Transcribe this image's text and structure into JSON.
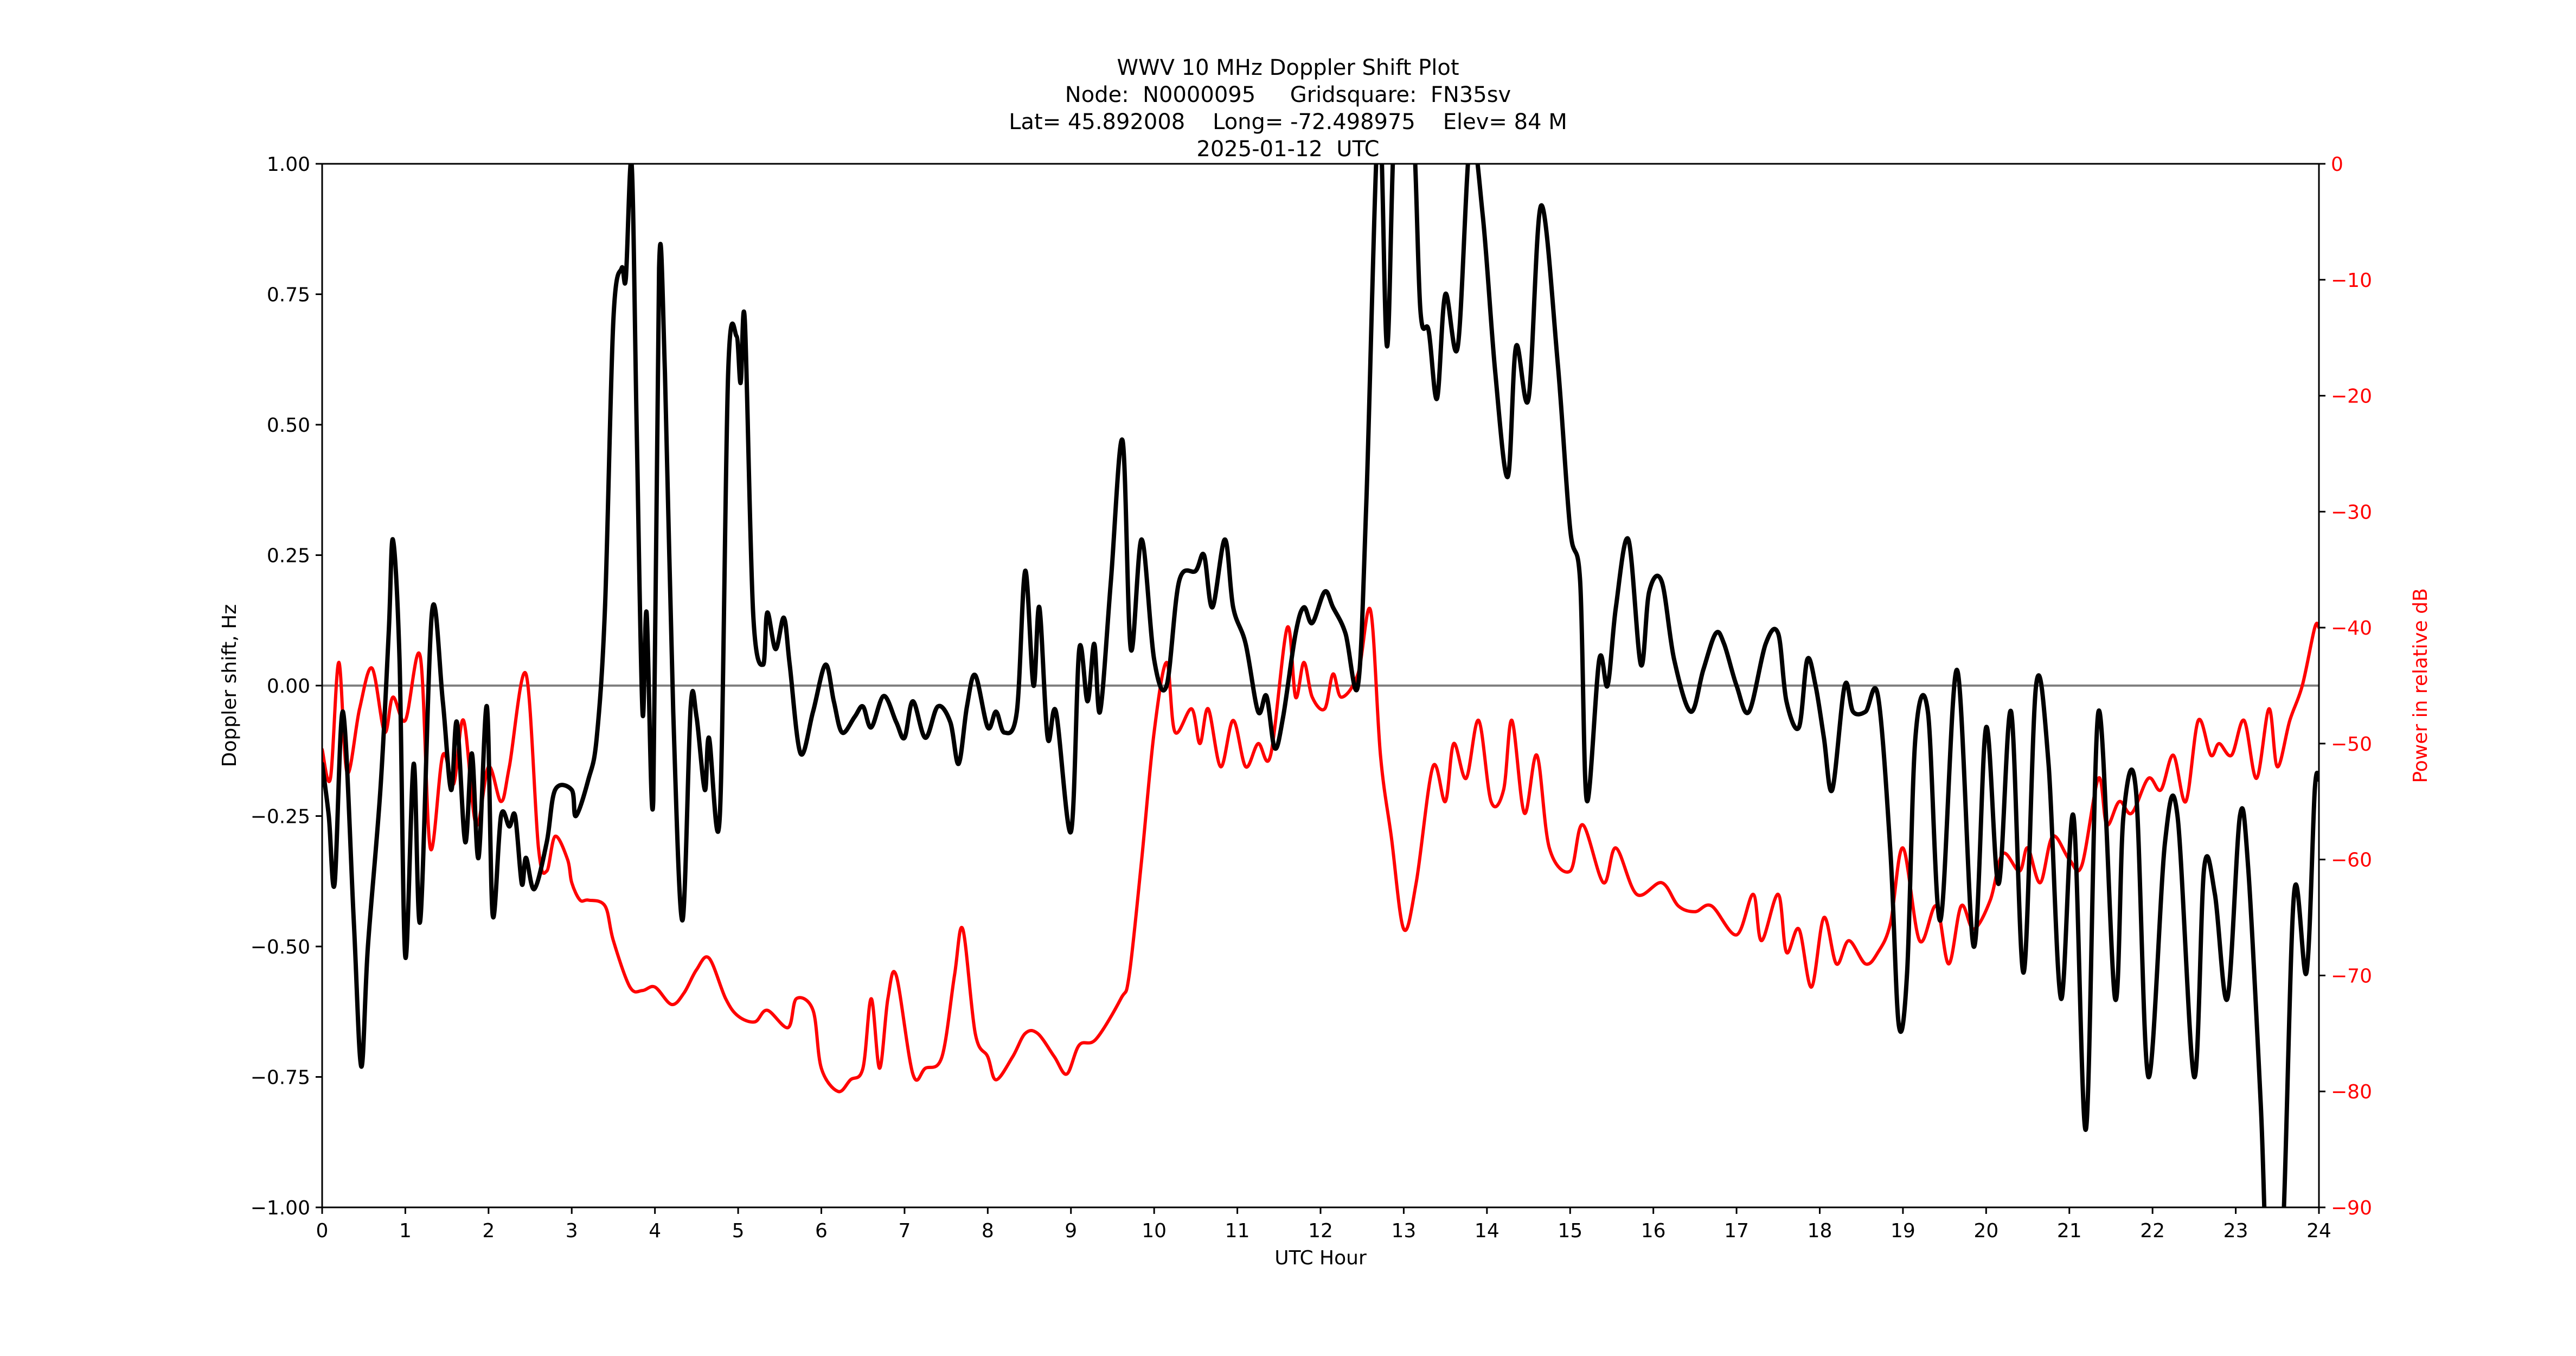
{
  "title": {
    "line1": "WWV 10 MHz Doppler Shift Plot",
    "line2": "Node:  N0000095     Gridsquare:  FN35sv",
    "line3": "Lat= 45.892008    Long= -72.498975    Elev= 84 M",
    "line4": "2025-01-12  UTC"
  },
  "colors": {
    "doppler": "#000000",
    "power": "#ff0000",
    "zero_line": "#808080",
    "axis": "#000000"
  },
  "chart_data": {
    "type": "line",
    "title": "WWV 10 MHz Doppler Shift Plot",
    "subtitle": "Node: N0000095  Gridsquare: FN35sv  Lat= 45.892008  Long= -72.498975  Elev= 84 M  2025-01-12 UTC",
    "xlabel": "UTC Hour",
    "ylabel": "Doppler shift, Hz",
    "y2label": "Power in relative dB",
    "xlim": [
      0,
      24
    ],
    "ylim": [
      -1.0,
      1.0
    ],
    "y2lim": [
      -90,
      0
    ],
    "grid": false,
    "legend": null,
    "x_ticks": [
      "0",
      "1",
      "2",
      "3",
      "4",
      "5",
      "6",
      "7",
      "8",
      "9",
      "10",
      "11",
      "12",
      "13",
      "14",
      "15",
      "16",
      "17",
      "18",
      "19",
      "20",
      "21",
      "22",
      "23",
      "24"
    ],
    "y_ticks": [
      "1.00",
      "0.75",
      "0.50",
      "0.25",
      "0.00",
      "−0.25",
      "−0.50",
      "−0.75",
      "−1.00"
    ],
    "y2_ticks": [
      "0",
      "−10",
      "−20",
      "−30",
      "−40",
      "−50",
      "−60",
      "−70",
      "−80",
      "−90"
    ],
    "series": [
      {
        "name": "Doppler shift, Hz",
        "axis": "left",
        "color": "#000000",
        "x": [
          0.0,
          0.08,
          0.15,
          0.25,
          0.38,
          0.47,
          0.55,
          0.7,
          0.8,
          0.85,
          0.93,
          1.0,
          1.1,
          1.18,
          1.32,
          1.45,
          1.55,
          1.62,
          1.72,
          1.8,
          1.88,
          1.98,
          2.05,
          2.15,
          2.25,
          2.32,
          2.4,
          2.45,
          2.55,
          2.7,
          2.8,
          3.0,
          3.05,
          3.2,
          3.3,
          3.4,
          3.5,
          3.6,
          3.65,
          3.72,
          3.78,
          3.85,
          3.9,
          3.98,
          4.05,
          4.12,
          4.22,
          4.33,
          4.43,
          4.5,
          4.6,
          4.65,
          4.78,
          4.88,
          4.98,
          5.03,
          5.08,
          5.18,
          5.3,
          5.35,
          5.45,
          5.55,
          5.62,
          5.75,
          5.9,
          6.05,
          6.15,
          6.25,
          6.4,
          6.5,
          6.6,
          6.75,
          6.9,
          7.0,
          7.1,
          7.25,
          7.4,
          7.55,
          7.65,
          7.75,
          7.85,
          8.0,
          8.1,
          8.2,
          8.35,
          8.45,
          8.55,
          8.62,
          8.72,
          8.82,
          9.0,
          9.1,
          9.2,
          9.28,
          9.35,
          9.48,
          9.62,
          9.72,
          9.85,
          10.0,
          10.15,
          10.3,
          10.5,
          10.6,
          10.7,
          10.85,
          10.95,
          11.1,
          11.25,
          11.35,
          11.45,
          11.55,
          11.7,
          11.8,
          11.9,
          12.05,
          12.15,
          12.3,
          12.45,
          12.55,
          12.7,
          12.8,
          12.9,
          13.1,
          13.2,
          13.3,
          13.4,
          13.5,
          13.65,
          13.8,
          13.95,
          14.1,
          14.25,
          14.35,
          14.5,
          14.65,
          14.85,
          15.0,
          15.12,
          15.2,
          15.35,
          15.45,
          15.55,
          15.7,
          15.85,
          15.95,
          16.1,
          16.25,
          16.45,
          16.6,
          16.75,
          16.85,
          17.0,
          17.15,
          17.35,
          17.5,
          17.6,
          17.75,
          17.85,
          17.95,
          18.05,
          18.15,
          18.3,
          18.4,
          18.55,
          18.7,
          18.85,
          18.95,
          19.05,
          19.15,
          19.3,
          19.45,
          19.65,
          19.85,
          20.0,
          20.15,
          20.3,
          20.45,
          20.6,
          20.75,
          20.9,
          21.05,
          21.2,
          21.35,
          21.55,
          21.65,
          21.8,
          21.95,
          22.15,
          22.3,
          22.5,
          22.62,
          22.75,
          22.9,
          23.05,
          23.15,
          23.3,
          23.38,
          23.55,
          23.7,
          23.85,
          23.95,
          24.0
        ],
        "values": [
          -0.15,
          -0.25,
          -0.38,
          -0.05,
          -0.45,
          -0.73,
          -0.5,
          -0.2,
          0.1,
          0.28,
          0.05,
          -0.52,
          -0.15,
          -0.45,
          0.14,
          -0.03,
          -0.2,
          -0.07,
          -0.3,
          -0.13,
          -0.33,
          -0.04,
          -0.44,
          -0.25,
          -0.27,
          -0.25,
          -0.38,
          -0.33,
          -0.39,
          -0.3,
          -0.2,
          -0.2,
          -0.25,
          -0.18,
          -0.1,
          0.15,
          0.7,
          0.8,
          0.78,
          1.0,
          0.5,
          -0.05,
          0.14,
          -0.22,
          0.8,
          0.6,
          -0.05,
          -0.45,
          -0.04,
          -0.06,
          -0.2,
          -0.1,
          -0.25,
          0.6,
          0.67,
          0.58,
          0.7,
          0.14,
          0.04,
          0.14,
          0.07,
          0.13,
          0.04,
          -0.13,
          -0.05,
          0.04,
          -0.03,
          -0.09,
          -0.06,
          -0.04,
          -0.08,
          -0.02,
          -0.07,
          -0.1,
          -0.03,
          -0.1,
          -0.04,
          -0.07,
          -0.15,
          -0.04,
          0.02,
          -0.08,
          -0.05,
          -0.09,
          -0.05,
          0.22,
          0.0,
          0.15,
          -0.1,
          -0.05,
          -0.28,
          0.07,
          -0.03,
          0.08,
          -0.05,
          0.2,
          0.47,
          0.07,
          0.28,
          0.05,
          0.0,
          0.2,
          0.22,
          0.25,
          0.15,
          0.28,
          0.15,
          0.08,
          -0.05,
          -0.02,
          -0.12,
          -0.06,
          0.1,
          0.15,
          0.12,
          0.18,
          0.15,
          0.1,
          0.0,
          0.35,
          1.1,
          0.65,
          1.1,
          1.1,
          0.72,
          0.68,
          0.55,
          0.75,
          0.65,
          1.05,
          0.9,
          0.6,
          0.4,
          0.65,
          0.55,
          0.92,
          0.62,
          0.3,
          0.2,
          -0.22,
          0.05,
          0.0,
          0.15,
          0.28,
          0.04,
          0.18,
          0.2,
          0.05,
          -0.05,
          0.03,
          0.1,
          0.08,
          0.0,
          -0.05,
          0.08,
          0.1,
          -0.03,
          -0.08,
          0.05,
          0.0,
          -0.1,
          -0.2,
          0.0,
          -0.05,
          -0.05,
          -0.02,
          -0.32,
          -0.65,
          -0.55,
          -0.1,
          -0.05,
          -0.45,
          0.03,
          -0.5,
          -0.08,
          -0.38,
          -0.05,
          -0.55,
          0.0,
          -0.15,
          -0.6,
          -0.25,
          -0.85,
          -0.05,
          -0.6,
          -0.25,
          -0.2,
          -0.75,
          -0.3,
          -0.25,
          -0.75,
          -0.35,
          -0.4,
          -0.6,
          -0.25,
          -0.35,
          -0.8,
          -1.1,
          -1.1,
          -0.4,
          -0.55,
          -0.2,
          -0.18
        ]
      },
      {
        "name": "Power in relative dB",
        "axis": "right",
        "color": "#ff0000",
        "x": [
          0.0,
          0.1,
          0.2,
          0.3,
          0.45,
          0.6,
          0.75,
          0.85,
          1.0,
          1.18,
          1.3,
          1.45,
          1.58,
          1.7,
          1.85,
          2.0,
          2.15,
          2.25,
          2.45,
          2.6,
          2.7,
          2.8,
          2.95,
          3.0,
          3.1,
          3.2,
          3.4,
          3.5,
          3.7,
          3.85,
          4.0,
          4.2,
          4.35,
          4.5,
          4.65,
          4.85,
          5.0,
          5.2,
          5.35,
          5.6,
          5.7,
          5.9,
          6.0,
          6.2,
          6.35,
          6.5,
          6.6,
          6.7,
          6.8,
          6.9,
          7.1,
          7.25,
          7.45,
          7.6,
          7.7,
          7.85,
          8.0,
          8.1,
          8.3,
          8.45,
          8.6,
          8.8,
          8.95,
          9.1,
          9.3,
          9.6,
          9.7,
          9.85,
          10.0,
          10.15,
          10.25,
          10.45,
          10.55,
          10.65,
          10.8,
          10.95,
          11.1,
          11.25,
          11.4,
          11.6,
          11.7,
          11.8,
          11.9,
          12.05,
          12.15,
          12.25,
          12.45,
          12.6,
          12.72,
          12.85,
          13.0,
          13.15,
          13.35,
          13.5,
          13.6,
          13.75,
          13.9,
          14.05,
          14.2,
          14.3,
          14.45,
          14.6,
          14.75,
          15.0,
          15.15,
          15.4,
          15.55,
          15.8,
          16.1,
          16.3,
          16.5,
          16.7,
          17.0,
          17.2,
          17.3,
          17.5,
          17.6,
          17.75,
          17.9,
          18.05,
          18.2,
          18.35,
          18.55,
          18.7,
          18.85,
          19.0,
          19.2,
          19.4,
          19.55,
          19.7,
          19.85,
          20.05,
          20.2,
          20.4,
          20.5,
          20.65,
          20.8,
          21.0,
          21.15,
          21.35,
          21.45,
          21.6,
          21.75,
          21.95,
          22.1,
          22.25,
          22.4,
          22.55,
          22.7,
          22.8,
          22.95,
          23.1,
          23.25,
          23.4,
          23.5,
          23.65,
          23.8,
          23.95,
          24.0
        ],
        "values": [
          -50.5,
          -53,
          -43,
          -52.5,
          -47,
          -43.5,
          -49,
          -46,
          -48,
          -42.5,
          -59,
          -51,
          -53.5,
          -48,
          -57,
          -52,
          -55,
          -52,
          -44,
          -59,
          -61,
          -58,
          -60,
          -62,
          -63.5,
          -63.5,
          -64,
          -67,
          -71,
          -71.3,
          -71,
          -72.5,
          -71.5,
          -69.5,
          -68.5,
          -72,
          -73.5,
          -74,
          -73,
          -74.5,
          -72,
          -73,
          -78,
          -80,
          -79,
          -78,
          -72,
          -78,
          -72,
          -70,
          -78.5,
          -78,
          -77,
          -70,
          -66,
          -75,
          -77,
          -79,
          -77,
          -75,
          -75,
          -77,
          -78.5,
          -76,
          -75.5,
          -72,
          -70,
          -60,
          -49,
          -43,
          -49,
          -47,
          -50,
          -47,
          -52,
          -48,
          -52,
          -50,
          -51,
          -40,
          -46,
          -43,
          -46,
          -47,
          -44,
          -46,
          -44,
          -38.5,
          -51,
          -58,
          -66,
          -62,
          -52,
          -55,
          -50,
          -53,
          -48,
          -55,
          -54,
          -48,
          -56,
          -51,
          -59,
          -61,
          -57,
          -62,
          -59,
          -63,
          -62,
          -64,
          -64.5,
          -64,
          -66.5,
          -63,
          -67,
          -63,
          -68,
          -66,
          -71,
          -65,
          -69,
          -67,
          -69,
          -68,
          -65.5,
          -59,
          -67,
          -64,
          -69,
          -64,
          -66,
          -63.5,
          -59.5,
          -61,
          -59,
          -62,
          -58,
          -60,
          -60.5,
          -53,
          -57,
          -55,
          -56,
          -53,
          -54,
          -51,
          -55,
          -48,
          -51,
          -50,
          -51,
          -48,
          -53,
          -47,
          -52,
          -48,
          -45,
          -40,
          -40
        ]
      }
    ],
    "annotations": [
      {
        "type": "hline",
        "axis": "left",
        "y": 0.0,
        "color": "#808080"
      }
    ]
  }
}
